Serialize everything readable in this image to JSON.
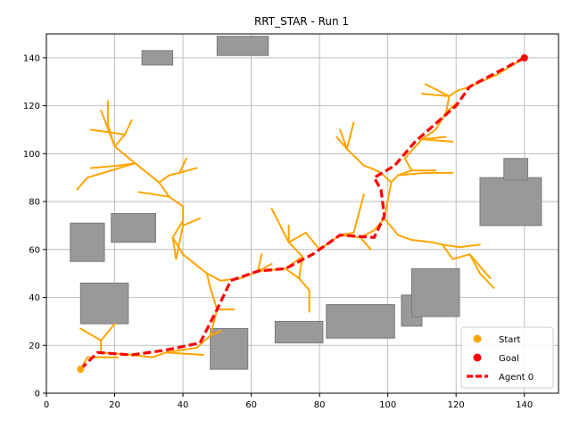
{
  "chart_data": {
    "type": "scatter",
    "title": "RRT_STAR - Run 1",
    "xlabel": "",
    "ylabel": "",
    "xlim": [
      0,
      150
    ],
    "ylim": [
      0,
      150
    ],
    "xticks": [
      0,
      20,
      40,
      60,
      80,
      100,
      120,
      140
    ],
    "yticks": [
      0,
      20,
      40,
      60,
      80,
      100,
      120,
      140
    ],
    "grid": true,
    "legend_position": "lower-right",
    "colors": {
      "obstacle": "#999999",
      "obstacle_edge": "#7a7a7a",
      "tree": "#ffa500",
      "start": "#ffa500",
      "goal": "#ff0000",
      "path": "#ff0000",
      "grid": "#b0b0b0"
    },
    "obstacles": [
      {
        "x": 28,
        "y": 137,
        "w": 9,
        "h": 6
      },
      {
        "x": 50,
        "y": 141,
        "w": 15,
        "h": 8
      },
      {
        "x": 7,
        "y": 55,
        "w": 10,
        "h": 16
      },
      {
        "x": 19,
        "y": 63,
        "w": 13,
        "h": 12
      },
      {
        "x": 10,
        "y": 29,
        "w": 14,
        "h": 17
      },
      {
        "x": 48,
        "y": 10,
        "w": 11,
        "h": 17
      },
      {
        "x": 67,
        "y": 21,
        "w": 14,
        "h": 9
      },
      {
        "x": 82,
        "y": 23,
        "w": 20,
        "h": 14
      },
      {
        "x": 104,
        "y": 28,
        "w": 6,
        "h": 13
      },
      {
        "x": 107,
        "y": 32,
        "w": 14,
        "h": 20
      },
      {
        "x": 127,
        "y": 70,
        "w": 18,
        "h": 20
      },
      {
        "x": 134,
        "y": 89,
        "w": 7,
        "h": 9
      }
    ],
    "tree_edges": [
      [
        [
          10,
          10
        ],
        [
          12,
          15
        ]
      ],
      [
        [
          12,
          15
        ],
        [
          17,
          15
        ]
      ],
      [
        [
          17,
          15
        ],
        [
          21,
          15
        ]
      ],
      [
        [
          10,
          27
        ],
        [
          16,
          22
        ]
      ],
      [
        [
          16,
          22
        ],
        [
          16,
          17
        ]
      ],
      [
        [
          16,
          22
        ],
        [
          20,
          29
        ]
      ],
      [
        [
          16,
          17
        ],
        [
          25,
          16
        ]
      ],
      [
        [
          25,
          16
        ],
        [
          31,
          15
        ]
      ],
      [
        [
          31,
          15
        ],
        [
          35,
          17
        ]
      ],
      [
        [
          35,
          17
        ],
        [
          44,
          19
        ]
      ],
      [
        [
          35,
          17
        ],
        [
          46,
          16
        ]
      ],
      [
        [
          44,
          19
        ],
        [
          48,
          24
        ]
      ],
      [
        [
          48,
          24
        ],
        [
          51,
          26
        ]
      ],
      [
        [
          48,
          24
        ],
        [
          50,
          35
        ]
      ],
      [
        [
          50,
          35
        ],
        [
          55,
          35
        ]
      ],
      [
        [
          50,
          35
        ],
        [
          48,
          44
        ]
      ],
      [
        [
          48,
          44
        ],
        [
          47,
          50
        ]
      ],
      [
        [
          47,
          50
        ],
        [
          40,
          58
        ]
      ],
      [
        [
          40,
          58
        ],
        [
          37,
          65
        ]
      ],
      [
        [
          37,
          65
        ],
        [
          40,
          72
        ]
      ],
      [
        [
          37,
          65
        ],
        [
          38,
          56
        ]
      ],
      [
        [
          38,
          56
        ],
        [
          40,
          70
        ]
      ],
      [
        [
          40,
          70
        ],
        [
          45,
          73
        ]
      ],
      [
        [
          40,
          70
        ],
        [
          40,
          78
        ]
      ],
      [
        [
          40,
          78
        ],
        [
          36,
          82
        ]
      ],
      [
        [
          36,
          82
        ],
        [
          27,
          84
        ]
      ],
      [
        [
          36,
          82
        ],
        [
          33,
          88
        ]
      ],
      [
        [
          33,
          88
        ],
        [
          26,
          96
        ]
      ],
      [
        [
          26,
          96
        ],
        [
          21,
          95
        ]
      ],
      [
        [
          21,
          95
        ],
        [
          13,
          94
        ]
      ],
      [
        [
          26,
          96
        ],
        [
          12,
          90
        ]
      ],
      [
        [
          12,
          90
        ],
        [
          9,
          85
        ]
      ],
      [
        [
          26,
          96
        ],
        [
          20,
          103
        ]
      ],
      [
        [
          20,
          103
        ],
        [
          18,
          112
        ]
      ],
      [
        [
          18,
          112
        ],
        [
          18,
          122
        ]
      ],
      [
        [
          20,
          103
        ],
        [
          23,
          108
        ]
      ],
      [
        [
          23,
          108
        ],
        [
          25,
          114
        ]
      ],
      [
        [
          20,
          103
        ],
        [
          16,
          118
        ]
      ],
      [
        [
          23,
          108
        ],
        [
          13,
          110
        ]
      ],
      [
        [
          33,
          88
        ],
        [
          36,
          91
        ]
      ],
      [
        [
          36,
          91
        ],
        [
          39,
          92
        ]
      ],
      [
        [
          39,
          92
        ],
        [
          44,
          94
        ]
      ],
      [
        [
          39,
          92
        ],
        [
          41,
          98
        ]
      ],
      [
        [
          47,
          50
        ],
        [
          51,
          47
        ]
      ],
      [
        [
          51,
          47
        ],
        [
          57,
          48
        ]
      ],
      [
        [
          57,
          48
        ],
        [
          62,
          51
        ]
      ],
      [
        [
          62,
          51
        ],
        [
          63,
          58
        ]
      ],
      [
        [
          62,
          51
        ],
        [
          66,
          54
        ]
      ],
      [
        [
          62,
          51
        ],
        [
          70,
          52
        ]
      ],
      [
        [
          70,
          52
        ],
        [
          75,
          57
        ]
      ],
      [
        [
          75,
          57
        ],
        [
          74,
          48
        ]
      ],
      [
        [
          74,
          48
        ],
        [
          70,
          52
        ]
      ],
      [
        [
          74,
          48
        ],
        [
          77,
          43
        ]
      ],
      [
        [
          77,
          43
        ],
        [
          77,
          34
        ]
      ],
      [
        [
          75,
          57
        ],
        [
          71,
          63
        ]
      ],
      [
        [
          71,
          63
        ],
        [
          66,
          77
        ]
      ],
      [
        [
          71,
          63
        ],
        [
          71,
          70
        ]
      ],
      [
        [
          71,
          63
        ],
        [
          76,
          67
        ]
      ],
      [
        [
          76,
          67
        ],
        [
          80,
          60
        ]
      ],
      [
        [
          80,
          60
        ],
        [
          86,
          66
        ]
      ],
      [
        [
          86,
          66
        ],
        [
          92,
          65
        ]
      ],
      [
        [
          92,
          65
        ],
        [
          95,
          60
        ]
      ],
      [
        [
          92,
          65
        ],
        [
          96,
          68
        ]
      ],
      [
        [
          96,
          68
        ],
        [
          99,
          73
        ]
      ],
      [
        [
          99,
          73
        ],
        [
          103,
          66
        ]
      ],
      [
        [
          103,
          66
        ],
        [
          107,
          64
        ]
      ],
      [
        [
          107,
          64
        ],
        [
          113,
          63
        ]
      ],
      [
        [
          113,
          63
        ],
        [
          116,
          62
        ]
      ],
      [
        [
          116,
          62
        ],
        [
          121,
          61
        ]
      ],
      [
        [
          121,
          61
        ],
        [
          127,
          62
        ]
      ],
      [
        [
          116,
          62
        ],
        [
          119,
          56
        ]
      ],
      [
        [
          119,
          56
        ],
        [
          124,
          58
        ]
      ],
      [
        [
          124,
          58
        ],
        [
          127,
          50
        ]
      ],
      [
        [
          127,
          50
        ],
        [
          131,
          44
        ]
      ],
      [
        [
          124,
          58
        ],
        [
          130,
          48
        ]
      ],
      [
        [
          99,
          73
        ],
        [
          101,
          88
        ]
      ],
      [
        [
          101,
          88
        ],
        [
          98,
          92
        ]
      ],
      [
        [
          98,
          92
        ],
        [
          95,
          94
        ]
      ],
      [
        [
          95,
          94
        ],
        [
          93,
          95
        ]
      ],
      [
        [
          93,
          95
        ],
        [
          88,
          102
        ]
      ],
      [
        [
          88,
          102
        ],
        [
          86,
          110
        ]
      ],
      [
        [
          88,
          102
        ],
        [
          90,
          113
        ]
      ],
      [
        [
          88,
          102
        ],
        [
          85,
          107
        ]
      ],
      [
        [
          101,
          88
        ],
        [
          103,
          91
        ]
      ],
      [
        [
          103,
          91
        ],
        [
          111,
          92
        ]
      ],
      [
        [
          111,
          92
        ],
        [
          119,
          92
        ]
      ],
      [
        [
          103,
          91
        ],
        [
          107,
          93
        ]
      ],
      [
        [
          107,
          93
        ],
        [
          114,
          93
        ]
      ],
      [
        [
          107,
          93
        ],
        [
          105,
          98
        ]
      ],
      [
        [
          105,
          98
        ],
        [
          110,
          106
        ]
      ],
      [
        [
          110,
          106
        ],
        [
          119,
          105
        ]
      ],
      [
        [
          110,
          106
        ],
        [
          117,
          107
        ]
      ],
      [
        [
          110,
          106
        ],
        [
          113,
          109
        ]
      ],
      [
        [
          113,
          109
        ],
        [
          114,
          110
        ]
      ],
      [
        [
          114,
          110
        ],
        [
          117,
          117
        ]
      ],
      [
        [
          117,
          117
        ],
        [
          120,
          121
        ]
      ],
      [
        [
          117,
          117
        ],
        [
          118,
          124
        ]
      ],
      [
        [
          118,
          124
        ],
        [
          110,
          125
        ]
      ],
      [
        [
          118,
          124
        ],
        [
          111,
          129
        ]
      ],
      [
        [
          118,
          124
        ],
        [
          120,
          126
        ]
      ],
      [
        [
          120,
          126
        ],
        [
          124,
          128
        ]
      ],
      [
        [
          124,
          128
        ],
        [
          132,
          133
        ]
      ],
      [
        [
          132,
          133
        ],
        [
          140,
          140
        ]
      ],
      [
        [
          86,
          66
        ],
        [
          90,
          67
        ]
      ],
      [
        [
          90,
          67
        ],
        [
          93,
          83
        ]
      ]
    ],
    "path": [
      [
        10,
        10
      ],
      [
        15,
        17
      ],
      [
        25,
        16
      ],
      [
        35,
        18
      ],
      [
        45,
        21
      ],
      [
        50,
        35
      ],
      [
        54,
        47
      ],
      [
        62,
        51
      ],
      [
        70,
        52
      ],
      [
        78,
        58
      ],
      [
        86,
        66
      ],
      [
        96,
        65
      ],
      [
        99,
        74
      ],
      [
        98,
        85
      ],
      [
        96,
        90
      ],
      [
        102,
        95
      ],
      [
        108,
        105
      ],
      [
        120,
        120
      ],
      [
        124,
        128
      ],
      [
        140,
        140
      ]
    ],
    "start": [
      10,
      10
    ],
    "goal": [
      140,
      140
    ],
    "legend": [
      {
        "label": "Start",
        "marker": "circle",
        "color": "#ffa500"
      },
      {
        "label": "Goal",
        "marker": "circle",
        "color": "#ff0000"
      },
      {
        "label": "Agent 0",
        "marker": "dashed-line",
        "color": "#ff0000"
      }
    ]
  }
}
